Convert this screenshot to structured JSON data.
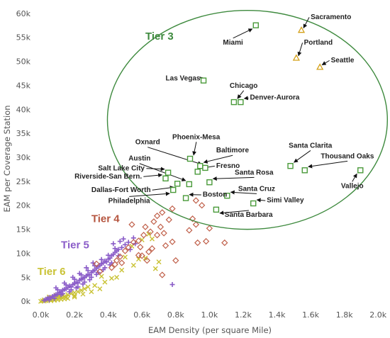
{
  "chart_data": {
    "type": "scatter",
    "xlabel": "EAM Density (per square Mile)",
    "ylabel": "EAM per Coverage Station",
    "xlim": [
      -0.04,
      2.02
    ],
    "ylim": [
      -1,
      61
    ],
    "x_ticks": [
      {
        "v": 0.0,
        "label": "0.0k"
      },
      {
        "v": 0.2,
        "label": "0.2k"
      },
      {
        "v": 0.4,
        "label": "0.4k"
      },
      {
        "v": 0.6,
        "label": "0.6k"
      },
      {
        "v": 0.8,
        "label": "0.8k"
      },
      {
        "v": 1.0,
        "label": "1.0k"
      },
      {
        "v": 1.2,
        "label": "1.2k"
      },
      {
        "v": 1.4,
        "label": "1.4k"
      },
      {
        "v": 1.6,
        "label": "1.6k"
      },
      {
        "v": 1.8,
        "label": "1.8k"
      },
      {
        "v": 2.0,
        "label": "2.0k"
      }
    ],
    "y_ticks": [
      {
        "v": 0,
        "label": "0k"
      },
      {
        "v": 5,
        "label": "5k"
      },
      {
        "v": 10,
        "label": "10k"
      },
      {
        "v": 15,
        "label": "15k"
      },
      {
        "v": 20,
        "label": "20k"
      },
      {
        "v": 25,
        "label": "25k"
      },
      {
        "v": 30,
        "label": "30k"
      },
      {
        "v": 35,
        "label": "35k"
      },
      {
        "v": 40,
        "label": "40k"
      },
      {
        "v": 45,
        "label": "45k"
      },
      {
        "v": 50,
        "label": "50k"
      },
      {
        "v": 55,
        "label": "55k"
      },
      {
        "v": 60,
        "label": "60k"
      }
    ],
    "grid": false,
    "colors": {
      "tier2": "#d4a017",
      "tier3": "#4a9a3a",
      "tier4": "#c0604a",
      "tier5": "#8a5cc8",
      "tier6": "#c9c234",
      "ellipse": "#3e8a3e"
    },
    "tier_labels": [
      {
        "text": "Tier 3",
        "x": 0.62,
        "y": 54.5,
        "color": "#3e8a3e"
      },
      {
        "text": "Tier 4",
        "x": 0.3,
        "y": 16.5,
        "color": "#b5553f"
      },
      {
        "text": "Tier 5",
        "x": 0.12,
        "y": 11.0,
        "color": "#8a5cc8"
      },
      {
        "text": "Tier 6",
        "x": -0.02,
        "y": 5.5,
        "color": "#c9c234"
      }
    ],
    "ellipse": {
      "cx": 1.225,
      "cy": 37.8,
      "rx": 0.83,
      "ry": 22.8
    },
    "tier2": [
      {
        "name": "Sacramento",
        "x": 1.545,
        "y": 56.5,
        "lx": 1.6,
        "ly": 58.8,
        "ax": 1.555,
        "ay": 58.0
      },
      {
        "name": "Portland",
        "x": 1.515,
        "y": 50.7,
        "lx": 1.56,
        "ly": 53.5,
        "ax": 1.525,
        "ay": 52.1
      },
      {
        "name": "Seattle",
        "x": 1.655,
        "y": 48.8,
        "lx": 1.72,
        "ly": 49.8,
        "ax": 1.67,
        "ay": 49.4
      }
    ],
    "tier3": [
      {
        "name": "Miami",
        "x": 1.275,
        "y": 57.5,
        "lx": 1.08,
        "ly": 53.5,
        "ax": 1.255,
        "ay": 55.8,
        "anchor": "start"
      },
      {
        "name": "Las Vegas",
        "x": 0.965,
        "y": 46.0,
        "lx": 0.74,
        "ly": 46.0,
        "ax": 0.935,
        "ay": 45.8,
        "anchor": "start"
      },
      {
        "name": "Chicago",
        "x": 1.145,
        "y": 41.5,
        "lx": 1.12,
        "ly": 44.5,
        "ax": 1.145,
        "ay": 42.8,
        "anchor": "start"
      },
      {
        "name": "Denver-Aurora",
        "x": 1.185,
        "y": 41.5,
        "lx": 1.24,
        "ly": 42.0,
        "ax": 1.2,
        "ay": 41.6,
        "anchor": "start"
      },
      {
        "name": "Phoenix-Mesa",
        "x": 0.885,
        "y": 29.7,
        "lx": 0.78,
        "ly": 33.8,
        "ax": 0.88,
        "ay": 31.0,
        "anchor": "start"
      },
      {
        "name": "Baltimore",
        "x": 0.945,
        "y": 28.2,
        "lx": 1.04,
        "ly": 31.0,
        "ax": 0.96,
        "ay": 29.0,
        "anchor": "start"
      },
      {
        "name": "Oxnard",
        "x": 0.975,
        "y": 27.8,
        "lx": 0.56,
        "ly": 32.7,
        "ax": 0.925,
        "ay": 28.6,
        "anchor": "start"
      },
      {
        "name": "Fresno",
        "x": 0.93,
        "y": 27.0,
        "lx": 1.04,
        "ly": 27.8,
        "ax": 0.985,
        "ay": 27.4,
        "anchor": "start"
      },
      {
        "name": "Austin",
        "x": 0.88,
        "y": 24.4,
        "lx": 0.52,
        "ly": 29.3,
        "ax": 0.855,
        "ay": 25.1,
        "anchor": "start"
      },
      {
        "name": "Santa Rosa",
        "x": 1.0,
        "y": 24.8,
        "lx": 1.15,
        "ly": 26.4,
        "ax": 1.02,
        "ay": 25.2,
        "anchor": "start"
      },
      {
        "name": "Salt Lake City",
        "x": 0.755,
        "y": 26.8,
        "lx": 0.34,
        "ly": 27.3,
        "ax": 0.74,
        "ay": 26.9,
        "anchor": "start"
      },
      {
        "name": "Riverside-San Bern.",
        "x": 0.74,
        "y": 25.6,
        "lx": 0.2,
        "ly": 25.6,
        "ax": 0.725,
        "ay": 25.6,
        "anchor": "start"
      },
      {
        "name": "Dallas-Fort Worth",
        "x": 0.81,
        "y": 24.5,
        "lx": 0.3,
        "ly": 22.8,
        "ax": 0.79,
        "ay": 24.1,
        "anchor": "start"
      },
      {
        "name": "Philadelphia",
        "x": 0.785,
        "y": 23.2,
        "lx": 0.4,
        "ly": 20.5,
        "ax": 0.765,
        "ay": 22.8,
        "anchor": "start"
      },
      {
        "name": "Boston",
        "x": 0.86,
        "y": 21.5,
        "lx": 0.96,
        "ly": 21.8,
        "ax": 0.88,
        "ay": 21.6,
        "anchor": "start"
      },
      {
        "name": "Santa Cruz",
        "x": 1.105,
        "y": 22.0,
        "lx": 1.17,
        "ly": 23.0,
        "ax": 1.12,
        "ay": 22.3,
        "anchor": "start"
      },
      {
        "name": "Simi Valley",
        "x": 1.26,
        "y": 20.4,
        "lx": 1.34,
        "ly": 20.6,
        "ax": 1.28,
        "ay": 20.5,
        "anchor": "start"
      },
      {
        "name": "Santa Barbara",
        "x": 1.04,
        "y": 19.1,
        "lx": 1.09,
        "ly": 17.6,
        "ax": 1.055,
        "ay": 18.6,
        "anchor": "start"
      },
      {
        "name": "Santa Clarita",
        "x": 1.48,
        "y": 28.2,
        "lx": 1.47,
        "ly": 32.0,
        "ax": 1.495,
        "ay": 29.2,
        "anchor": "start"
      },
      {
        "name": "Thousand Oaks",
        "x": 1.565,
        "y": 27.3,
        "lx": 1.66,
        "ly": 29.8,
        "ax": 1.58,
        "ay": 27.5,
        "anchor": "start"
      },
      {
        "name": "Vallejo",
        "x": 1.895,
        "y": 27.3,
        "lx": 1.78,
        "ly": 23.6,
        "ax": 1.875,
        "ay": 26.8,
        "anchor": "start"
      }
    ],
    "tier4": [
      [
        0.955,
        20.0
      ],
      [
        0.9,
        17.2
      ],
      [
        0.92,
        16.0
      ],
      [
        1.0,
        15.2
      ],
      [
        0.88,
        14.8
      ],
      [
        0.78,
        19.3
      ],
      [
        0.76,
        17.0
      ],
      [
        0.72,
        18.5
      ],
      [
        0.69,
        17.8
      ],
      [
        0.67,
        16.6
      ],
      [
        0.71,
        15.5
      ],
      [
        0.73,
        14.2
      ],
      [
        0.69,
        13.8
      ],
      [
        0.65,
        14.5
      ],
      [
        0.62,
        15.5
      ],
      [
        0.61,
        13.8
      ],
      [
        0.58,
        12.6
      ],
      [
        0.55,
        12.3
      ],
      [
        0.52,
        11.2
      ],
      [
        0.5,
        10.5
      ],
      [
        0.47,
        9.3
      ],
      [
        0.45,
        8.5
      ],
      [
        0.44,
        7.7
      ],
      [
        0.42,
        7.0
      ],
      [
        0.48,
        8.0
      ],
      [
        0.58,
        9.6
      ],
      [
        0.64,
        10.3
      ],
      [
        0.66,
        11.0
      ],
      [
        0.8,
        8.5
      ],
      [
        0.98,
        12.5
      ],
      [
        1.09,
        12.2
      ],
      [
        0.93,
        12.2
      ],
      [
        0.74,
        11.6
      ],
      [
        0.59,
        11.3
      ],
      [
        0.63,
        8.5
      ],
      [
        0.78,
        12.4
      ],
      [
        0.35,
        6.2
      ],
      [
        0.33,
        7.8
      ],
      [
        0.54,
        16.0
      ],
      [
        0.72,
        5.5
      ],
      [
        0.92,
        21.0
      ],
      [
        0.6,
        9.5
      ]
    ],
    "tier5": [
      [
        0.02,
        0.2
      ],
      [
        0.03,
        0.4
      ],
      [
        0.04,
        0.6
      ],
      [
        0.05,
        0.8
      ],
      [
        0.06,
        0.7
      ],
      [
        0.07,
        1.0
      ],
      [
        0.08,
        1.2
      ],
      [
        0.09,
        1.4
      ],
      [
        0.1,
        1.5
      ],
      [
        0.11,
        1.8
      ],
      [
        0.12,
        2.0
      ],
      [
        0.13,
        2.3
      ],
      [
        0.14,
        2.5
      ],
      [
        0.15,
        2.6
      ],
      [
        0.16,
        2.9
      ],
      [
        0.17,
        3.2
      ],
      [
        0.18,
        3.0
      ],
      [
        0.19,
        3.5
      ],
      [
        0.2,
        3.7
      ],
      [
        0.21,
        4.0
      ],
      [
        0.22,
        3.8
      ],
      [
        0.23,
        4.4
      ],
      [
        0.24,
        4.6
      ],
      [
        0.25,
        4.8
      ],
      [
        0.26,
        5.0
      ],
      [
        0.27,
        5.3
      ],
      [
        0.28,
        5.6
      ],
      [
        0.29,
        5.5
      ],
      [
        0.3,
        6.0
      ],
      [
        0.31,
        6.3
      ],
      [
        0.32,
        6.5
      ],
      [
        0.33,
        6.9
      ],
      [
        0.34,
        7.2
      ],
      [
        0.35,
        7.5
      ],
      [
        0.36,
        7.8
      ],
      [
        0.37,
        8.0
      ],
      [
        0.38,
        8.4
      ],
      [
        0.39,
        8.2
      ],
      [
        0.4,
        8.8
      ],
      [
        0.41,
        9.0
      ],
      [
        0.42,
        9.5
      ],
      [
        0.43,
        9.8
      ],
      [
        0.44,
        10.2
      ],
      [
        0.45,
        10.5
      ],
      [
        0.46,
        10.8
      ],
      [
        0.48,
        11.2
      ],
      [
        0.5,
        11.8
      ],
      [
        0.52,
        12.3
      ],
      [
        0.1,
        2.4
      ],
      [
        0.12,
        1.4
      ],
      [
        0.15,
        3.4
      ],
      [
        0.18,
        2.4
      ],
      [
        0.2,
        4.6
      ],
      [
        0.22,
        3.0
      ],
      [
        0.24,
        5.5
      ],
      [
        0.26,
        4.0
      ],
      [
        0.28,
        6.4
      ],
      [
        0.3,
        5.0
      ],
      [
        0.32,
        7.4
      ],
      [
        0.34,
        6.0
      ],
      [
        0.36,
        8.7
      ],
      [
        0.38,
        7.0
      ],
      [
        0.4,
        9.6
      ],
      [
        0.42,
        8.0
      ],
      [
        0.44,
        11.0
      ],
      [
        0.46,
        9.5
      ],
      [
        0.05,
        0.3
      ],
      [
        0.08,
        0.6
      ],
      [
        0.13,
        1.6
      ],
      [
        0.17,
        2.0
      ],
      [
        0.21,
        2.8
      ],
      [
        0.25,
        3.6
      ],
      [
        0.29,
        4.5
      ],
      [
        0.33,
        5.6
      ],
      [
        0.37,
        6.6
      ],
      [
        0.41,
        7.6
      ],
      [
        0.55,
        13.2
      ],
      [
        0.53,
        10.8
      ],
      [
        0.49,
        13.0
      ],
      [
        0.56,
        12.0
      ],
      [
        0.78,
        3.5
      ],
      [
        0.43,
        12.0
      ],
      [
        0.47,
        12.5
      ],
      [
        0.19,
        5.0
      ],
      [
        0.23,
        5.8
      ],
      [
        0.27,
        7.0
      ],
      [
        0.31,
        8.0
      ],
      [
        0.09,
        2.8
      ],
      [
        0.14,
        3.8
      ]
    ],
    "tier6": [
      [
        0.0,
        0.0
      ],
      [
        0.01,
        0.1
      ],
      [
        0.02,
        0.3
      ],
      [
        0.03,
        0.2
      ],
      [
        0.04,
        0.5
      ],
      [
        0.05,
        0.4
      ],
      [
        0.06,
        0.3
      ],
      [
        0.07,
        0.6
      ],
      [
        0.08,
        0.5
      ],
      [
        0.09,
        0.8
      ],
      [
        0.1,
        0.7
      ],
      [
        0.11,
        1.0
      ],
      [
        0.12,
        0.9
      ],
      [
        0.13,
        1.2
      ],
      [
        0.14,
        1.0
      ],
      [
        0.16,
        1.4
      ],
      [
        0.18,
        1.6
      ],
      [
        0.2,
        1.8
      ],
      [
        0.22,
        2.0
      ],
      [
        0.24,
        2.3
      ],
      [
        0.02,
        0.05
      ],
      [
        0.03,
        0.15
      ],
      [
        0.04,
        0.25
      ],
      [
        0.06,
        0.1
      ],
      [
        0.08,
        0.2
      ],
      [
        0.1,
        0.3
      ],
      [
        0.12,
        0.4
      ],
      [
        0.14,
        0.5
      ],
      [
        0.16,
        0.6
      ],
      [
        0.2,
        0.9
      ],
      [
        0.26,
        2.6
      ],
      [
        0.28,
        3.0
      ],
      [
        0.15,
        0.8
      ],
      [
        0.05,
        0.9
      ],
      [
        0.09,
        1.3
      ],
      [
        0.54,
        11.5
      ],
      [
        0.6,
        12.8
      ],
      [
        0.7,
        8.2
      ],
      [
        0.62,
        9.0
      ],
      [
        0.55,
        7.5
      ],
      [
        0.48,
        6.5
      ],
      [
        0.38,
        4.0
      ],
      [
        0.32,
        3.3
      ],
      [
        0.35,
        2.6
      ],
      [
        0.3,
        2.0
      ],
      [
        0.25,
        1.5
      ],
      [
        0.2,
        1.2
      ],
      [
        0.45,
        5.0
      ],
      [
        0.64,
        14.0
      ],
      [
        0.68,
        6.8
      ],
      [
        0.42,
        4.8
      ],
      [
        0.58,
        8.8
      ],
      [
        0.5,
        9.2
      ],
      [
        0.36,
        5.2
      ],
      [
        0.66,
        13.0
      ]
    ]
  }
}
